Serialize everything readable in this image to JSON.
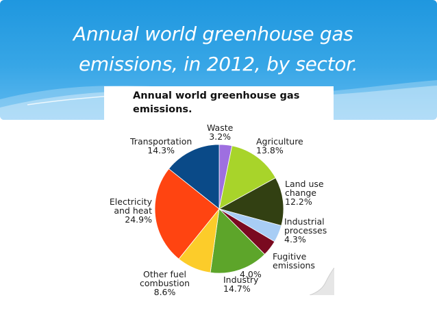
{
  "slide": {
    "title_line1": "Annual world greenhouse gas",
    "title_line2": "emissions, in 2012, by sector."
  },
  "chart_data": {
    "type": "pie",
    "title": "Annual world greenhouse gas emissions.",
    "slices": [
      {
        "label": "Waste",
        "value": 3.2,
        "display": "3.2%",
        "color": "#9e6fe0"
      },
      {
        "label": "Agriculture",
        "value": 13.8,
        "display": "13.8%",
        "color": "#a8d42a"
      },
      {
        "label": "Land use change",
        "value": 12.2,
        "display": "12.2%",
        "color": "#324012"
      },
      {
        "label": "Industrial processes",
        "value": 4.3,
        "display": "4.3%",
        "color": "#a8cdf5"
      },
      {
        "label": "Fugitive emissions",
        "value": 4.0,
        "display": "4.0%",
        "color": "#7a0a20"
      },
      {
        "label": "Industry",
        "value": 14.7,
        "display": "14.7%",
        "color": "#5da52a"
      },
      {
        "label": "Other fuel combustion",
        "value": 8.6,
        "display": "8.6%",
        "color": "#fccc2a"
      },
      {
        "label": "Electricity and heat",
        "value": 24.9,
        "display": "24.9%",
        "color": "#ff4411"
      },
      {
        "label": "Transportation",
        "value": 14.3,
        "display": "14.3%",
        "color": "#0a4a88"
      }
    ],
    "label_lines": {
      "waste": [
        "Waste",
        "3.2%"
      ],
      "agriculture": [
        "Agriculture",
        "13.8%"
      ],
      "land_use": [
        "Land use",
        "change",
        "12.2%"
      ],
      "industrial": [
        "Industrial",
        "processes",
        "4.3%"
      ],
      "fugitive": [
        "Fugitive",
        "emissions",
        "4.0%"
      ],
      "industry": [
        "Industry",
        "14.7%"
      ],
      "other_fuel": [
        "Other fuel",
        "combustion",
        "8.6%"
      ],
      "electricity": [
        "Electricity",
        "and heat",
        "24.9%"
      ],
      "transportation": [
        "Transportation",
        "14.3%"
      ]
    }
  }
}
